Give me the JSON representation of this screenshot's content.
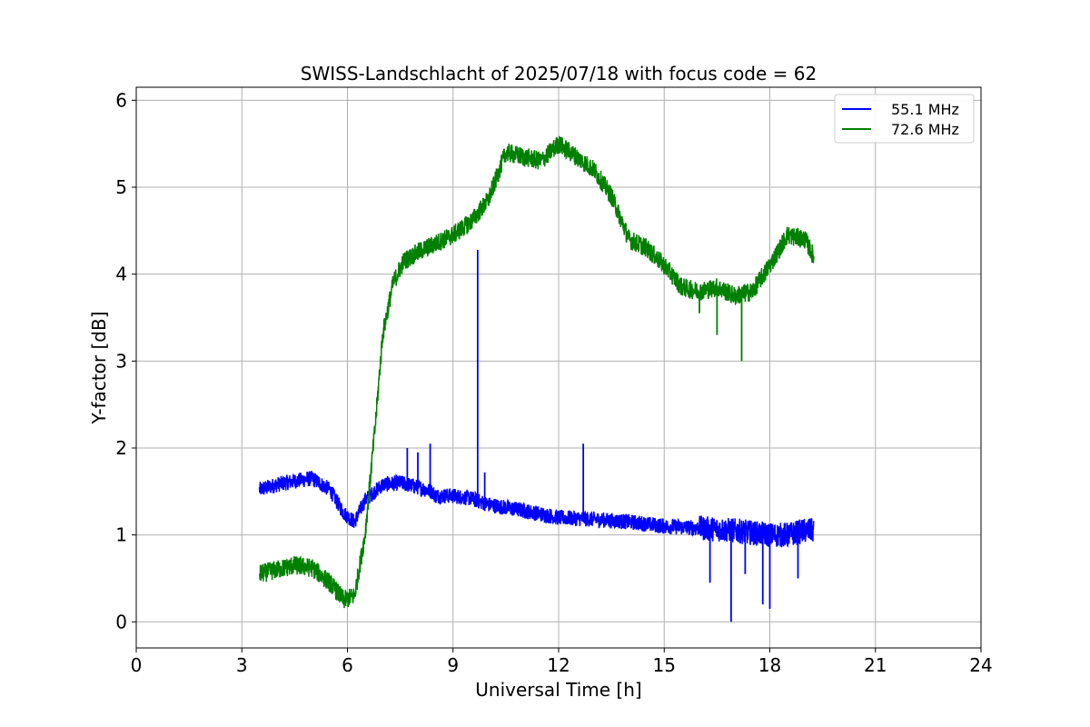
{
  "chart_data": {
    "type": "line",
    "title": "SWISS-Landschlacht of 2025/07/18 with focus code = 62",
    "xlabel": "Universal Time [h]",
    "ylabel": "Y-factor [dB]",
    "xlim": [
      0,
      24
    ],
    "ylim": [
      -0.3,
      6.15
    ],
    "xticks": [
      0,
      3,
      6,
      9,
      12,
      15,
      18,
      21,
      24
    ],
    "yticks": [
      0,
      1,
      2,
      3,
      4,
      5,
      6
    ],
    "grid": true,
    "legend_position": "top-right",
    "series": [
      {
        "name": "55.1 MHz",
        "color": "#0000ff",
        "noise": 0.09,
        "x": [
          3.5,
          4.0,
          4.5,
          5.0,
          5.5,
          5.9,
          6.2,
          6.5,
          7.0,
          7.5,
          8.0,
          8.4,
          8.5,
          9.0,
          9.5,
          10.0,
          11.0,
          12.0,
          13.0,
          14.0,
          15.0,
          16.0,
          17.0,
          18.0,
          18.5,
          19.0,
          19.25
        ],
        "y": [
          1.52,
          1.58,
          1.62,
          1.65,
          1.52,
          1.25,
          1.15,
          1.4,
          1.58,
          1.6,
          1.55,
          1.5,
          1.45,
          1.45,
          1.42,
          1.35,
          1.28,
          1.2,
          1.18,
          1.15,
          1.1,
          1.08,
          1.05,
          1.0,
          1.0,
          1.05,
          1.05
        ],
        "spikes": [
          {
            "x": 7.7,
            "y": 2.0
          },
          {
            "x": 8.0,
            "y": 1.95
          },
          {
            "x": 8.35,
            "y": 2.05
          },
          {
            "x": 9.7,
            "y": 4.28
          },
          {
            "x": 9.9,
            "y": 1.72
          },
          {
            "x": 12.7,
            "y": 2.05
          }
        ],
        "dips": [
          {
            "x": 16.3,
            "y": 0.45
          },
          {
            "x": 16.9,
            "y": 0.0
          },
          {
            "x": 17.3,
            "y": 0.55
          },
          {
            "x": 17.8,
            "y": 0.2
          },
          {
            "x": 18.0,
            "y": 0.15
          },
          {
            "x": 18.8,
            "y": 0.5
          }
        ]
      },
      {
        "name": "72.6 MHz",
        "color": "#008000",
        "noise": 0.11,
        "x": [
          3.5,
          4.0,
          4.5,
          5.0,
          5.5,
          5.9,
          6.2,
          6.5,
          6.8,
          7.0,
          7.3,
          7.6,
          8.0,
          8.5,
          9.0,
          9.5,
          10.0,
          10.5,
          11.0,
          11.5,
          12.0,
          12.5,
          13.0,
          13.5,
          14.0,
          14.5,
          15.0,
          15.5,
          16.0,
          16.5,
          17.0,
          17.5,
          18.0,
          18.5,
          19.0,
          19.25
        ],
        "y": [
          0.55,
          0.6,
          0.65,
          0.62,
          0.45,
          0.25,
          0.3,
          1.0,
          2.3,
          3.3,
          3.9,
          4.15,
          4.25,
          4.35,
          4.45,
          4.6,
          4.85,
          5.4,
          5.35,
          5.3,
          5.5,
          5.35,
          5.2,
          4.9,
          4.4,
          4.3,
          4.1,
          3.85,
          3.8,
          3.85,
          3.75,
          3.8,
          4.1,
          4.45,
          4.4,
          4.2
        ],
        "spikes": [],
        "dips": [
          {
            "x": 16.5,
            "y": 3.3
          },
          {
            "x": 17.2,
            "y": 3.0
          },
          {
            "x": 16.0,
            "y": 3.55
          }
        ]
      }
    ]
  }
}
